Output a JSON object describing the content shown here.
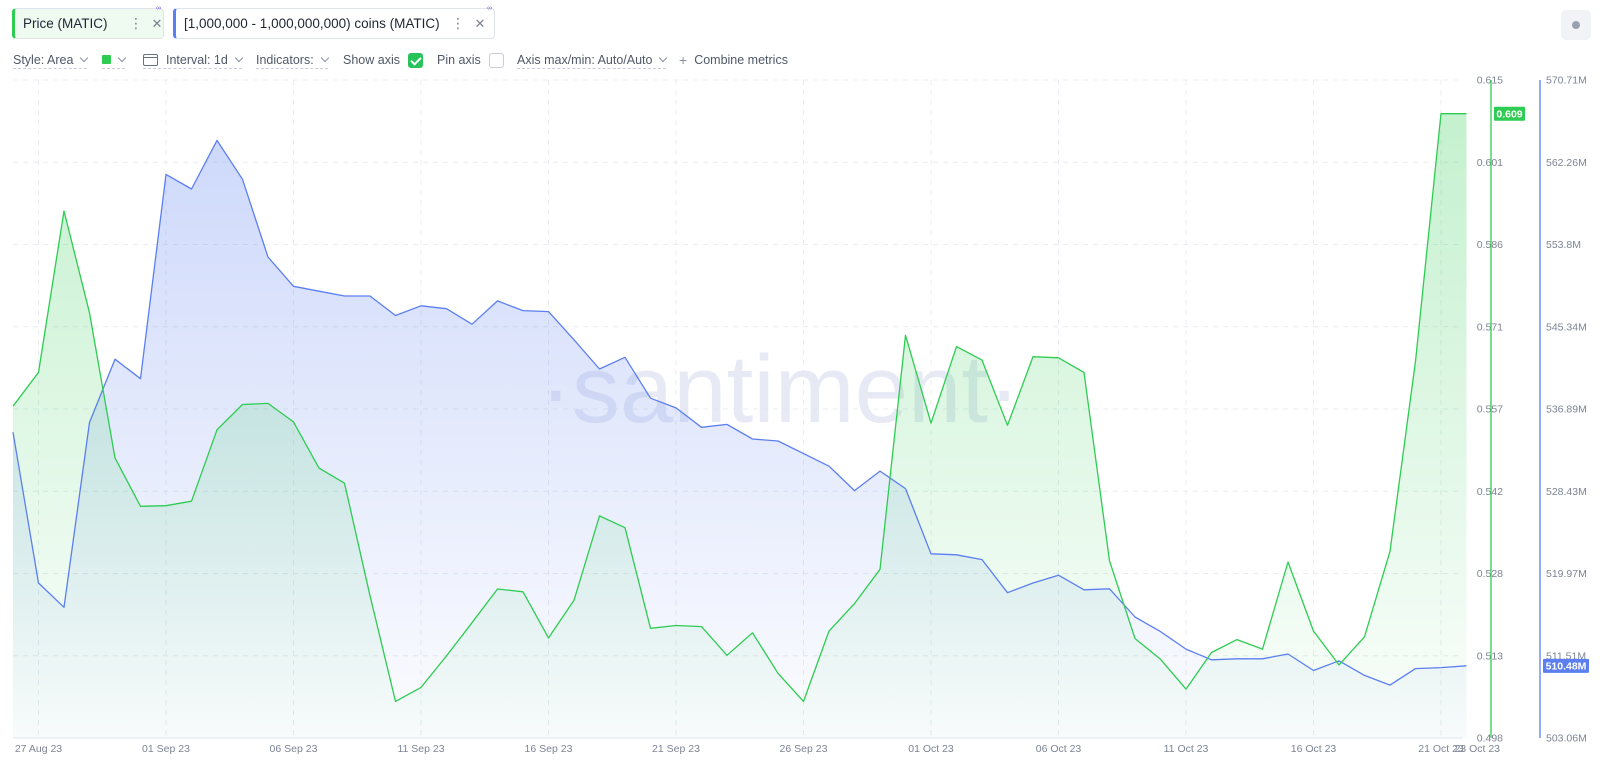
{
  "metrics": [
    {
      "label": "Price (MATIC)",
      "color": "#2ecc52"
    },
    {
      "label": "[1,000,000 - 1,000,000,000) coins (MATIC)",
      "color": "#5b7ff0"
    }
  ],
  "toolbar": {
    "style": "Style: Area",
    "interval": "Interval: 1d",
    "indicators": "Indicators:",
    "show_axis": "Show axis",
    "pin_axis": "Pin axis",
    "axis_maxmin": "Axis max/min: Auto/Auto",
    "combine": "Combine metrics"
  },
  "watermark": "·santiment·",
  "chart_data": {
    "type": "area",
    "x": [
      "2023-08-26",
      "2023-08-27",
      "2023-08-28",
      "2023-08-29",
      "2023-08-30",
      "2023-08-31",
      "2023-09-01",
      "2023-09-02",
      "2023-09-03",
      "2023-09-04",
      "2023-09-05",
      "2023-09-06",
      "2023-09-07",
      "2023-09-08",
      "2023-09-09",
      "2023-09-10",
      "2023-09-11",
      "2023-09-12",
      "2023-09-13",
      "2023-09-14",
      "2023-09-15",
      "2023-09-16",
      "2023-09-17",
      "2023-09-18",
      "2023-09-19",
      "2023-09-20",
      "2023-09-21",
      "2023-09-22",
      "2023-09-23",
      "2023-09-24",
      "2023-09-25",
      "2023-09-26",
      "2023-09-27",
      "2023-09-28",
      "2023-09-29",
      "2023-09-30",
      "2023-10-01",
      "2023-10-02",
      "2023-10-03",
      "2023-10-04",
      "2023-10-05",
      "2023-10-06",
      "2023-10-07",
      "2023-10-08",
      "2023-10-09",
      "2023-10-10",
      "2023-10-11",
      "2023-10-12",
      "2023-10-13",
      "2023-10-14",
      "2023-10-15",
      "2023-10-16",
      "2023-10-17",
      "2023-10-18",
      "2023-10-19",
      "2023-10-20",
      "2023-10-21",
      "2023-10-22"
    ],
    "x_ticks": [
      "27 Aug 23",
      "01 Sep 23",
      "06 Sep 23",
      "11 Sep 23",
      "16 Sep 23",
      "21 Sep 23",
      "26 Sep 23",
      "01 Oct 23",
      "06 Oct 23",
      "11 Oct 23",
      "16 Oct 23",
      "21 Oct 23",
      "23 Oct 23"
    ],
    "series": [
      {
        "name": "Price (MATIC)",
        "axis": "left",
        "color": "#2ecc52",
        "values": [
          0.557,
          0.563,
          0.5917,
          0.5736,
          0.5478,
          0.5392,
          0.5393,
          0.5401,
          0.5528,
          0.5573,
          0.5575,
          0.5542,
          0.546,
          0.5433,
          0.5233,
          0.5045,
          0.507,
          0.5126,
          0.5185,
          0.5245,
          0.524,
          0.5158,
          0.5225,
          0.5375,
          0.5354,
          0.5175,
          0.518,
          0.5178,
          0.5127,
          0.5167,
          0.5095,
          0.5045,
          0.517,
          0.5219,
          0.528,
          0.5696,
          0.554,
          0.5676,
          0.5652,
          0.5536,
          0.5658,
          0.5656,
          0.563,
          0.5295,
          0.5157,
          0.512,
          0.5067,
          0.5132,
          0.5155,
          0.5138,
          0.5293,
          0.517,
          0.511,
          0.516,
          0.5312,
          0.565,
          0.609,
          0.609
        ]
      },
      {
        "name": "[1,000,000 - 1,000,000,000) coins (MATIC)",
        "axis": "right",
        "color": "#5b7ff0",
        "values": [
          534.5,
          519.0,
          516.5,
          535.5,
          542.0,
          540.0,
          561.0,
          559.5,
          564.5,
          560.5,
          552.5,
          549.5,
          549.0,
          548.5,
          548.5,
          546.5,
          547.5,
          547.2,
          545.6,
          548.0,
          547.0,
          546.9,
          544.0,
          541.0,
          542.2,
          538.0,
          537.0,
          535.0,
          535.3,
          533.8,
          533.6,
          532.3,
          531.0,
          528.5,
          530.5,
          528.7,
          522.0,
          521.9,
          521.4,
          518.0,
          519.0,
          519.8,
          518.3,
          518.4,
          515.5,
          514.0,
          512.2,
          511.1,
          511.2,
          511.2,
          511.7,
          510.0,
          511.0,
          509.5,
          508.5,
          510.2,
          510.3,
          510.48
        ]
      }
    ],
    "left_axis": {
      "ticks": [
        "0.615",
        "0.601",
        "0.586",
        "0.571",
        "0.557",
        "0.542",
        "0.528",
        "0.513",
        "0.498"
      ],
      "range": [
        0.498,
        0.615
      ]
    },
    "right_axis": {
      "ticks": [
        "570.71M",
        "562.26M",
        "553.8M",
        "545.34M",
        "536.89M",
        "528.43M",
        "519.97M",
        "511.51M",
        "503.06M"
      ],
      "range": [
        503.06,
        570.71
      ]
    },
    "last_value_labels": {
      "left": "0.609",
      "right": "510.48M"
    },
    "grid": true
  }
}
